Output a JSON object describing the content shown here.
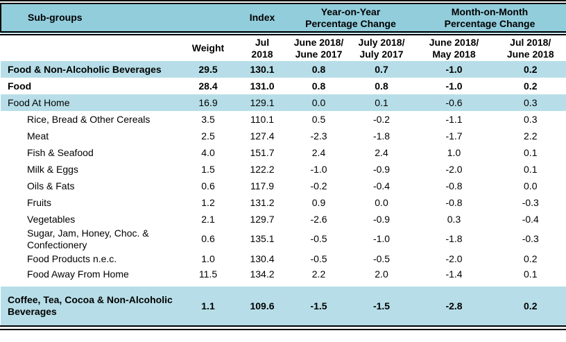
{
  "colors": {
    "header_band_bg": "#92CDDC",
    "highlight_row_bg": "#B7DEE8",
    "border": "#000000",
    "text": "#000000"
  },
  "table": {
    "header": {
      "subgroups": "Sub-groups",
      "index": "Index",
      "yoy_group": "Year-on-Year\nPercentage Change",
      "mom_group": "Month-on-Month\nPercentage Change",
      "weight": "Weight",
      "index_period": "Jul\n2018",
      "yoy_col1": "June 2018/\nJune 2017",
      "yoy_col2": "July 2018/\nJuly 2017",
      "mom_col1": "June 2018/\nMay 2018",
      "mom_col2": "Jul 2018/\nJune 2018"
    },
    "columns": [
      "label",
      "weight",
      "index",
      "yoy1",
      "yoy2",
      "mom1",
      "mom2"
    ],
    "rows": [
      {
        "label": "Food & Non-Alcoholic Beverages",
        "values": [
          "29.5",
          "130.1",
          "0.8",
          "0.7",
          "-1.0",
          "0.2"
        ],
        "highlight": true,
        "bold": true,
        "indent": false,
        "tall": false,
        "gap_before": false
      },
      {
        "label": "Food",
        "values": [
          "28.4",
          "131.0",
          "0.8",
          "0.8",
          "-1.0",
          "0.2"
        ],
        "highlight": false,
        "bold": true,
        "indent": false,
        "tall": false,
        "gap_before": false
      },
      {
        "label": "Food At Home",
        "values": [
          "16.9",
          "129.1",
          "0.0",
          "0.1",
          "-0.6",
          "0.3"
        ],
        "highlight": true,
        "bold": false,
        "indent": false,
        "tall": false,
        "gap_before": false
      },
      {
        "label": "Rice, Bread & Other Cereals",
        "values": [
          "3.5",
          "110.1",
          "0.5",
          "-0.2",
          "-1.1",
          "0.3"
        ],
        "highlight": false,
        "bold": false,
        "indent": true,
        "tall": false,
        "gap_before": false
      },
      {
        "label": "Meat",
        "values": [
          "2.5",
          "127.4",
          "-2.3",
          "-1.8",
          "-1.7",
          "2.2"
        ],
        "highlight": false,
        "bold": false,
        "indent": true,
        "tall": false,
        "gap_before": false
      },
      {
        "label": "Fish & Seafood",
        "values": [
          "4.0",
          "151.7",
          "2.4",
          "2.4",
          "1.0",
          "0.1"
        ],
        "highlight": false,
        "bold": false,
        "indent": true,
        "tall": false,
        "gap_before": false
      },
      {
        "label": "Milk & Eggs",
        "values": [
          "1.5",
          "122.2",
          "-1.0",
          "-0.9",
          "-2.0",
          "0.1"
        ],
        "highlight": false,
        "bold": false,
        "indent": true,
        "tall": false,
        "gap_before": false
      },
      {
        "label": "Oils & Fats",
        "values": [
          "0.6",
          "117.9",
          "-0.2",
          "-0.4",
          "-0.8",
          "0.0"
        ],
        "highlight": false,
        "bold": false,
        "indent": true,
        "tall": false,
        "gap_before": false
      },
      {
        "label": "Fruits",
        "values": [
          "1.2",
          "131.2",
          "0.9",
          "0.0",
          "-0.8",
          "-0.3"
        ],
        "highlight": false,
        "bold": false,
        "indent": true,
        "tall": false,
        "gap_before": false
      },
      {
        "label": "Vegetables",
        "values": [
          "2.1",
          "129.7",
          "-2.6",
          "-0.9",
          "0.3",
          "-0.4"
        ],
        "highlight": false,
        "bold": false,
        "indent": true,
        "tall": false,
        "gap_before": false
      },
      {
        "label": "Sugar, Jam, Honey, Choc. & Confectionery",
        "values": [
          "0.6",
          "135.1",
          "-0.5",
          "-1.0",
          "-1.8",
          "-0.3"
        ],
        "highlight": false,
        "bold": false,
        "indent": true,
        "tall": false,
        "gap_before": false
      },
      {
        "label": "Food Products n.e.c.",
        "values": [
          "1.0",
          "130.4",
          "-0.5",
          "-0.5",
          "-2.0",
          "0.2"
        ],
        "highlight": false,
        "bold": false,
        "indent": true,
        "tall": false,
        "gap_before": false
      },
      {
        "label": "Food Away From Home",
        "values": [
          "11.5",
          "134.2",
          "2.2",
          "2.0",
          "-1.4",
          "0.1"
        ],
        "highlight": false,
        "bold": false,
        "indent": true,
        "tall": false,
        "gap_before": false
      },
      {
        "label": "Coffee, Tea, Cocoa & Non-Alcoholic Beverages",
        "values": [
          "1.1",
          "109.6",
          "-1.5",
          "-1.5",
          "-2.8",
          "0.2"
        ],
        "highlight": true,
        "bold": true,
        "indent": false,
        "tall": true,
        "gap_before": true
      }
    ]
  }
}
